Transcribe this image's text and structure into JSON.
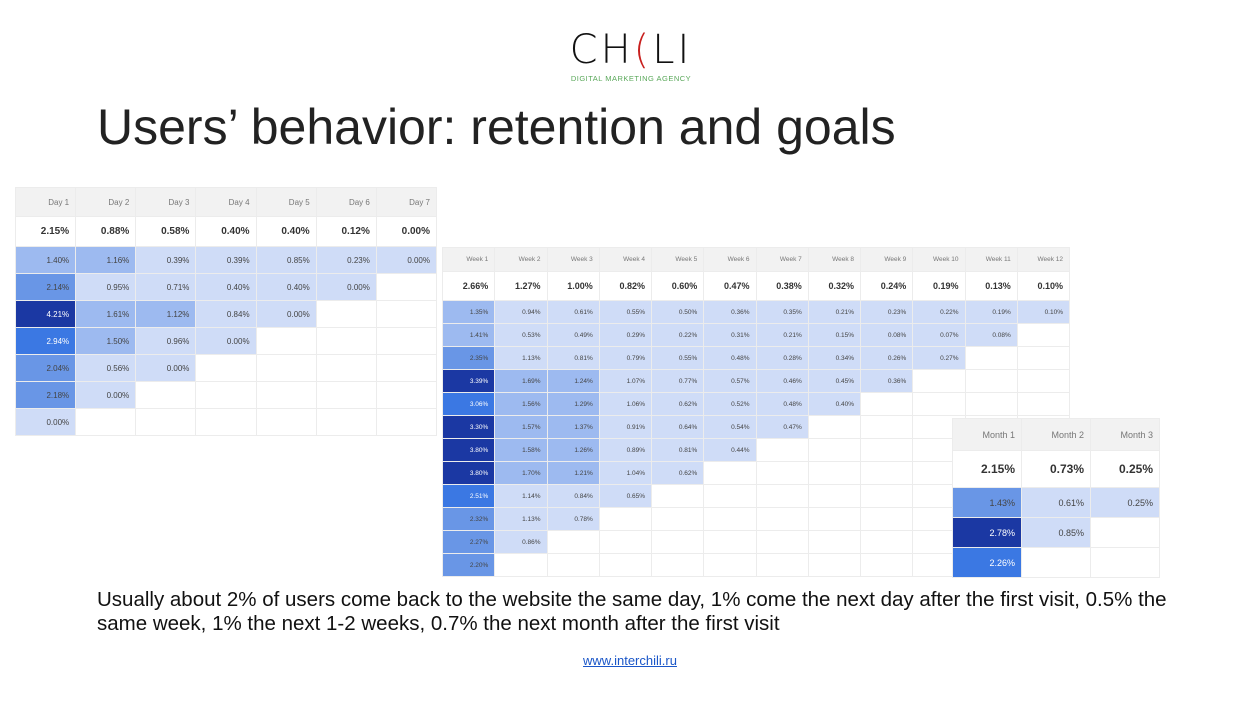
{
  "logo": {
    "word": "CHILI",
    "tagline": "DIGITAL MARKETING AGENCY",
    "accent_color": "#c8201e",
    "tagline_color": "#5aa85a"
  },
  "title": "Users’ behavior: retention and goals",
  "shade_colors": {
    "1": "#cfdcf7",
    "2": "#9dbaf0",
    "3": "#6996e6",
    "4": "#3b78e3",
    "5": "#1b38a3"
  },
  "tables": {
    "day": {
      "headers": [
        "Day 1",
        "Day 2",
        "Day 3",
        "Day 4",
        "Day 5",
        "Day 6",
        "Day 7"
      ],
      "totals": [
        "2.15%",
        "0.88%",
        "0.58%",
        "0.40%",
        "0.40%",
        "0.12%",
        "0.00%"
      ],
      "rows": [
        [
          "1.40%",
          "1.16%",
          "0.39%",
          "0.39%",
          "0.85%",
          "0.23%",
          "0.00%"
        ],
        [
          "2.14%",
          "0.95%",
          "0.71%",
          "0.40%",
          "0.40%",
          "0.00%"
        ],
        [
          "4.21%",
          "1.61%",
          "1.12%",
          "0.84%",
          "0.00%"
        ],
        [
          "2.94%",
          "1.50%",
          "0.96%",
          "0.00%"
        ],
        [
          "2.04%",
          "0.56%",
          "0.00%"
        ],
        [
          "2.18%",
          "0.00%"
        ],
        [
          "0.00%"
        ]
      ],
      "shades": [
        [
          2,
          2,
          1,
          1,
          1,
          1,
          1
        ],
        [
          3,
          1,
          1,
          1,
          1,
          1
        ],
        [
          5,
          2,
          2,
          1,
          1
        ],
        [
          4,
          2,
          1,
          1
        ],
        [
          3,
          1,
          1
        ],
        [
          3,
          1
        ],
        [
          1
        ]
      ]
    },
    "week": {
      "headers": [
        "Week 1",
        "Week 2",
        "Week 3",
        "Week 4",
        "Week 5",
        "Week 6",
        "Week 7",
        "Week 8",
        "Week 9",
        "Week 10",
        "Week 11",
        "Week 12"
      ],
      "totals": [
        "2.66%",
        "1.27%",
        "1.00%",
        "0.82%",
        "0.60%",
        "0.47%",
        "0.38%",
        "0.32%",
        "0.24%",
        "0.19%",
        "0.13%",
        "0.10%"
      ],
      "rows": [
        [
          "1.35%",
          "0.94%",
          "0.61%",
          "0.55%",
          "0.50%",
          "0.36%",
          "0.35%",
          "0.21%",
          "0.23%",
          "0.22%",
          "0.19%",
          "0.10%"
        ],
        [
          "1.41%",
          "0.53%",
          "0.49%",
          "0.29%",
          "0.22%",
          "0.31%",
          "0.21%",
          "0.15%",
          "0.08%",
          "0.07%",
          "0.08%"
        ],
        [
          "2.35%",
          "1.13%",
          "0.81%",
          "0.79%",
          "0.55%",
          "0.48%",
          "0.28%",
          "0.34%",
          "0.26%",
          "0.27%"
        ],
        [
          "3.39%",
          "1.69%",
          "1.24%",
          "1.07%",
          "0.77%",
          "0.57%",
          "0.46%",
          "0.45%",
          "0.36%"
        ],
        [
          "3.06%",
          "1.56%",
          "1.29%",
          "1.06%",
          "0.62%",
          "0.52%",
          "0.48%",
          "0.40%"
        ],
        [
          "3.30%",
          "1.57%",
          "1.37%",
          "0.91%",
          "0.64%",
          "0.54%",
          "0.47%"
        ],
        [
          "3.80%",
          "1.58%",
          "1.26%",
          "0.89%",
          "0.81%",
          "0.44%"
        ],
        [
          "3.80%",
          "1.70%",
          "1.21%",
          "1.04%",
          "0.62%"
        ],
        [
          "2.51%",
          "1.14%",
          "0.84%",
          "0.65%"
        ],
        [
          "2.32%",
          "1.13%",
          "0.78%"
        ],
        [
          "2.27%",
          "0.86%"
        ],
        [
          "2.20%"
        ]
      ],
      "shades": [
        [
          2,
          1,
          1,
          1,
          1,
          1,
          1,
          1,
          1,
          1,
          1,
          1
        ],
        [
          2,
          1,
          1,
          1,
          1,
          1,
          1,
          1,
          1,
          1,
          1
        ],
        [
          3,
          1,
          1,
          1,
          1,
          1,
          1,
          1,
          1,
          1
        ],
        [
          5,
          2,
          2,
          1,
          1,
          1,
          1,
          1,
          1
        ],
        [
          4,
          2,
          2,
          1,
          1,
          1,
          1,
          1
        ],
        [
          5,
          2,
          2,
          1,
          1,
          1,
          1
        ],
        [
          5,
          2,
          2,
          1,
          1,
          1
        ],
        [
          5,
          2,
          2,
          1,
          1
        ],
        [
          4,
          1,
          1,
          1
        ],
        [
          3,
          1,
          1
        ],
        [
          3,
          1
        ],
        [
          3
        ]
      ]
    },
    "month": {
      "headers": [
        "Month 1",
        "Month 2",
        "Month 3"
      ],
      "totals": [
        "2.15%",
        "0.73%",
        "0.25%"
      ],
      "rows": [
        [
          "1.43%",
          "0.61%",
          "0.25%"
        ],
        [
          "2.78%",
          "0.85%"
        ],
        [
          "2.26%"
        ]
      ],
      "shades": [
        [
          3,
          1,
          1
        ],
        [
          5,
          1
        ],
        [
          4
        ]
      ]
    }
  },
  "caption": "Usually about 2% of users come back to the website the same day, 1% come the next day after the first visit, 0.5% the same week, 1% the next 1-2 weeks, 0.7% the next month after the first visit",
  "link": "www.interchili.ru"
}
